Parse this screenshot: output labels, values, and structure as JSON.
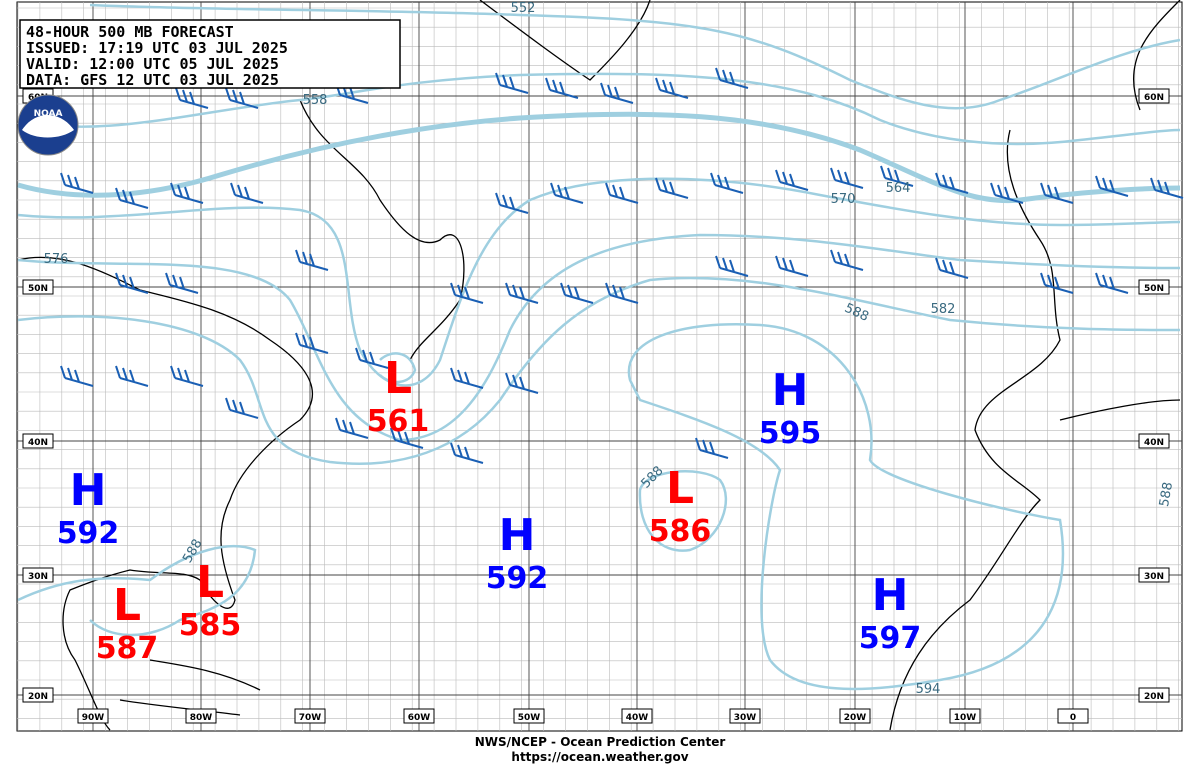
{
  "header": {
    "lines": [
      "48-HOUR 500 MB FORECAST",
      "ISSUED: 17:19 UTC 03 JUL 2025",
      "VALID:  12:00 UTC 05 JUL 2025",
      "DATA:  GFS 12 UTC 03 JUL 2025"
    ]
  },
  "logo": "NOAA",
  "latitude_labels": [
    "60N",
    "50N",
    "40N",
    "30N",
    "20N"
  ],
  "longitude_labels": [
    "90W",
    "80W",
    "70W",
    "60W",
    "50W",
    "40W",
    "30W",
    "20W",
    "10W",
    "0"
  ],
  "contour_labels": [
    "552",
    "558",
    "564",
    "570",
    "576",
    "582",
    "588",
    "588",
    "588",
    "594",
    "588"
  ],
  "systems": [
    {
      "type": "H",
      "value": "592"
    },
    {
      "type": "L",
      "value": "587"
    },
    {
      "type": "L",
      "value": "585"
    },
    {
      "type": "L",
      "value": "561"
    },
    {
      "type": "H",
      "value": "592"
    },
    {
      "type": "L",
      "value": "586"
    },
    {
      "type": "H",
      "value": "595"
    },
    {
      "type": "H",
      "value": "597"
    }
  ],
  "footer": {
    "lines": [
      "NWS/NCEP - Ocean Prediction Center",
      "https://ocean.weather.gov"
    ]
  }
}
